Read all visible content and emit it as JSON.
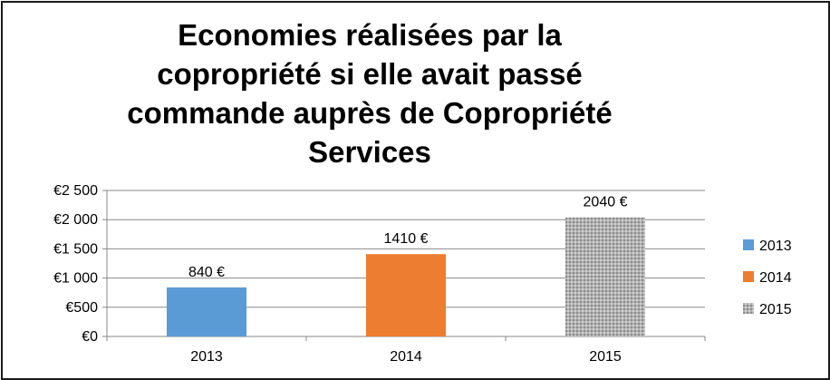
{
  "chart_data": {
    "type": "bar",
    "title_lines": [
      "Economies réalisées par la",
      "copropriété si elle avait passé",
      "commande auprès de Copropriété",
      "Services"
    ],
    "categories": [
      "2013",
      "2014",
      "2015"
    ],
    "values": [
      840,
      1410,
      2040
    ],
    "data_labels": [
      "840 €",
      "1410 €",
      "2040 €"
    ],
    "colors": [
      "#5b9bd5",
      "#ed7d31",
      "#a5a5a5"
    ],
    "third_bar_pattern": "dotted-gray",
    "yticks": [
      {
        "value": 0,
        "label": "€0"
      },
      {
        "value": 500,
        "label": "€500"
      },
      {
        "value": 1000,
        "label": "€1 000"
      },
      {
        "value": 1500,
        "label": "€1 500"
      },
      {
        "value": 2000,
        "label": "€2 000"
      },
      {
        "value": 2500,
        "label": "€2 500"
      }
    ],
    "ylim": [
      0,
      2500
    ],
    "grid": true,
    "legend": {
      "position": "right",
      "items": [
        {
          "label": "2013",
          "color": "#5b9bd5"
        },
        {
          "label": "2014",
          "color": "#ed7d31"
        },
        {
          "label": "2015",
          "color": "#a5a5a5"
        }
      ]
    }
  }
}
